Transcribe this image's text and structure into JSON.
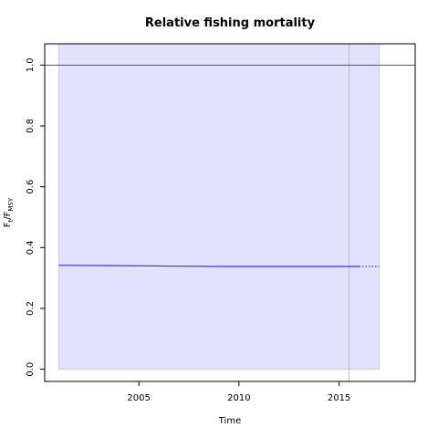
{
  "chart_data": {
    "type": "line",
    "title": "Relative fishing mortality",
    "xlabel": "Time",
    "ylabel": {
      "base": "F",
      "sub": "t",
      "sep": "/F",
      "sub2": "MSY"
    },
    "xlim": [
      2000.3,
      2018.8
    ],
    "ylim": [
      -0.04,
      1.07
    ],
    "xticks": [
      2005,
      2010,
      2015
    ],
    "yticks": [
      0.0,
      0.2,
      0.4,
      0.6,
      0.8,
      1.0
    ],
    "ytick_labels": [
      "0.0",
      "0.2",
      "0.4",
      "0.6",
      "0.8",
      "1.0"
    ],
    "grid": false,
    "confidence_band": {
      "x_start": 2001.0,
      "x_end": 2017.0,
      "lower": 0.0,
      "upper": 1.07,
      "color": "#e2e2fc"
    },
    "reference_line": {
      "y": 1.0,
      "color": "#555555"
    },
    "vertical_line": {
      "x": 2015.5,
      "color": "#bcbcbc"
    },
    "series": [
      {
        "style": "solid",
        "color": "#3333ee",
        "x": [
          2001.0,
          2003.0,
          2005.0,
          2007.0,
          2009.0,
          2011.0,
          2013.0,
          2015.0,
          2016.0
        ],
        "y": [
          0.342,
          0.341,
          0.34,
          0.339,
          0.338,
          0.338,
          0.338,
          0.338,
          0.338
        ]
      },
      {
        "style": "dotted",
        "color": "#3333ee",
        "x": [
          2016.0,
          2017.0
        ],
        "y": [
          0.338,
          0.338
        ]
      }
    ]
  }
}
